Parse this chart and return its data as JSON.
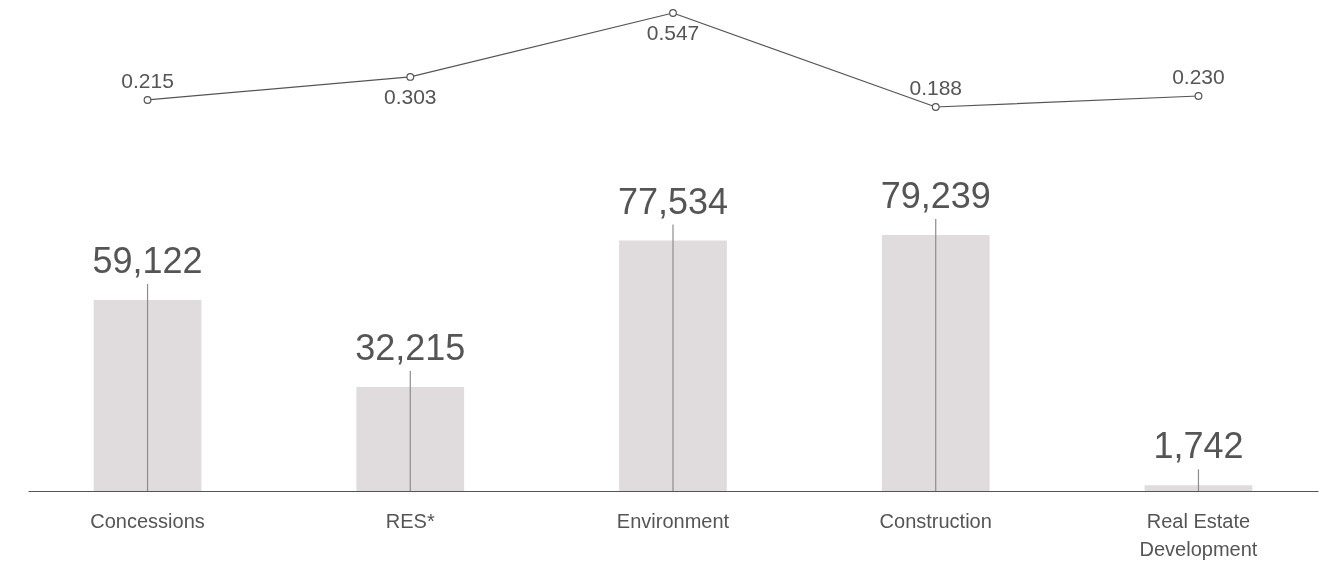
{
  "chart_data": [
    {
      "type": "line",
      "categories": [
        null,
        null,
        null,
        null,
        null
      ],
      "series": [
        {
          "color": "#555555",
          "values": [
            0.215,
            0.303,
            0.547,
            0.188,
            0.23
          ],
          "value_labels": [
            "0.215",
            "0.303",
            "0.547",
            "0.188",
            "0.230"
          ]
        }
      ],
      "marker": "circle",
      "line_style": "solid",
      "tick_labels": false
    },
    {
      "type": "bar",
      "categories": [
        "Concessions",
        "RES*",
        "Environment",
        "Construction",
        "Real Estate Development"
      ],
      "series": [
        {
          "color": "#e0dcdd",
          "values": [
            59122,
            32215,
            77534,
            79239,
            1742
          ],
          "value_labels": [
            "59,122",
            "32,215",
            "77,534",
            "79,239",
            "1,742"
          ]
        }
      ],
      "grid": "x",
      "tick_labels": "x"
    }
  ]
}
